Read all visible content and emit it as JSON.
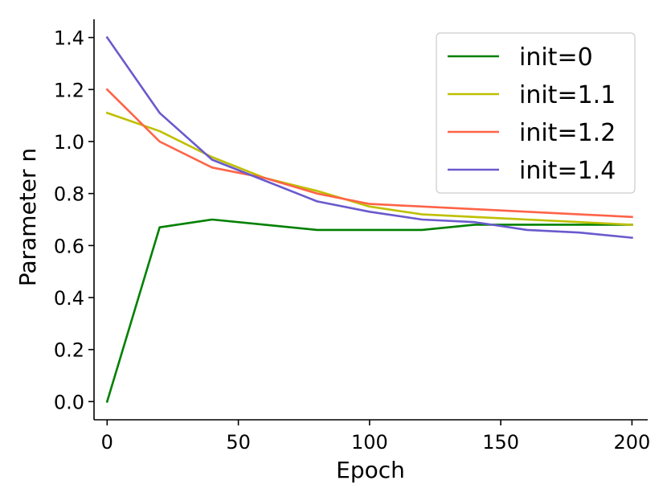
{
  "chart_data": {
    "type": "line",
    "title": "",
    "xlabel": "Epoch",
    "ylabel": "Parameter n",
    "xlim": [
      -5,
      206
    ],
    "ylim": [
      -0.07,
      1.47
    ],
    "xticks": [
      0,
      50,
      100,
      150,
      200
    ],
    "yticks": [
      0.0,
      0.2,
      0.4,
      0.6,
      0.8,
      1.0,
      1.2,
      1.4
    ],
    "xtick_labels": [
      "0",
      "50",
      "100",
      "150",
      "200"
    ],
    "ytick_labels": [
      "0.0",
      "0.2",
      "0.4",
      "0.6",
      "0.8",
      "1.0",
      "1.2",
      "1.4"
    ],
    "grid": false,
    "legend_position": "top-right",
    "x": [
      0,
      20,
      40,
      60,
      80,
      100,
      120,
      140,
      160,
      180,
      200
    ],
    "series": [
      {
        "name": "init=0",
        "color": "#008000",
        "values": [
          0.0,
          0.67,
          0.7,
          0.68,
          0.66,
          0.66,
          0.66,
          0.68,
          0.68,
          0.68,
          0.68
        ]
      },
      {
        "name": "init=1.1",
        "color": "#bfbf00",
        "values": [
          1.11,
          1.04,
          0.94,
          0.86,
          0.81,
          0.75,
          0.72,
          0.71,
          0.7,
          0.69,
          0.68
        ]
      },
      {
        "name": "init=1.2",
        "color": "#ff6347",
        "values": [
          1.2,
          1.0,
          0.9,
          0.86,
          0.8,
          0.76,
          0.75,
          0.74,
          0.73,
          0.72,
          0.71
        ]
      },
      {
        "name": "init=1.4",
        "color": "#6a5acd",
        "values": [
          1.4,
          1.11,
          0.93,
          0.85,
          0.77,
          0.73,
          0.7,
          0.69,
          0.66,
          0.65,
          0.63
        ]
      }
    ]
  }
}
